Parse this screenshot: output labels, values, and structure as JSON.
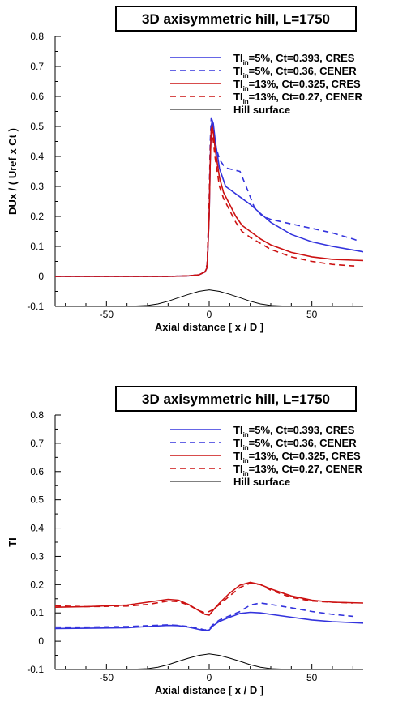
{
  "chart_data": [
    {
      "type": "line",
      "title": "3D axisymmetric hill, L=1750",
      "xlabel": "Axial distance [ x / D ]",
      "ylabel": "DUx / ( Uref x Ct )",
      "xlim": [
        -75,
        75
      ],
      "ylim": [
        -0.1,
        0.8
      ],
      "xticks": [
        -50,
        0,
        50
      ],
      "yticks": [
        -0.1,
        0,
        0.1,
        0.2,
        0.3,
        0.4,
        0.5,
        0.6,
        0.7,
        0.8
      ],
      "grid": false,
      "legend_position": "top-right",
      "series": [
        {
          "name": "TIin=5%, Ct=0.393, CRES",
          "legend_parts": [
            "TI",
            "in",
            "=5%, Ct=0.393, CRES"
          ],
          "color": "#3333dd",
          "dash": "solid",
          "x": [
            -75,
            -40,
            -20,
            -10,
            -5,
            -2,
            -1,
            0,
            0.5,
            1,
            1.5,
            2,
            3,
            5,
            8,
            12,
            16,
            20,
            25,
            30,
            40,
            50,
            60,
            70,
            75
          ],
          "y": [
            0,
            0,
            0,
            0.002,
            0.005,
            0.015,
            0.03,
            0.2,
            0.38,
            0.5,
            0.52,
            0.51,
            0.45,
            0.36,
            0.3,
            0.28,
            0.26,
            0.24,
            0.21,
            0.18,
            0.14,
            0.115,
            0.1,
            0.088,
            0.082
          ]
        },
        {
          "name": "TIin=5%, Ct=0.36, CENER",
          "legend_parts": [
            "TI",
            "in",
            "=5%, Ct=0.36, CENER"
          ],
          "color": "#3333dd",
          "dash": "dashed",
          "x": [
            -75,
            -40,
            -20,
            -10,
            -5,
            -2,
            -1,
            0,
            0.5,
            1,
            1.5,
            2,
            3,
            5,
            7,
            9,
            12,
            15,
            18,
            22,
            26,
            30,
            40,
            50,
            60,
            70,
            72
          ],
          "y": [
            0,
            0,
            0,
            0.002,
            0.005,
            0.015,
            0.04,
            0.25,
            0.45,
            0.53,
            0.52,
            0.5,
            0.44,
            0.39,
            0.37,
            0.36,
            0.355,
            0.35,
            0.3,
            0.23,
            0.2,
            0.19,
            0.175,
            0.16,
            0.145,
            0.125,
            0.12
          ]
        },
        {
          "name": "TIin=13%, Ct=0.325, CRES",
          "legend_parts": [
            "TI",
            "in",
            "=13%, Ct=0.325, CRES"
          ],
          "color": "#cc1111",
          "dash": "solid",
          "x": [
            -75,
            -40,
            -20,
            -10,
            -5,
            -2,
            -1,
            0,
            0.5,
            1,
            1.5,
            2,
            3,
            5,
            7,
            10,
            13,
            16,
            20,
            25,
            30,
            40,
            50,
            60,
            70,
            75
          ],
          "y": [
            0,
            0,
            0,
            0.002,
            0.005,
            0.015,
            0.03,
            0.2,
            0.38,
            0.49,
            0.5,
            0.48,
            0.42,
            0.33,
            0.28,
            0.24,
            0.2,
            0.17,
            0.15,
            0.125,
            0.105,
            0.08,
            0.065,
            0.057,
            0.054,
            0.053
          ]
        },
        {
          "name": "TIin=13%, Ct=0.27, CENER",
          "legend_parts": [
            "TI",
            "in",
            "=13%, Ct=0.27, CENER"
          ],
          "color": "#cc1111",
          "dash": "dashed",
          "x": [
            -75,
            -40,
            -20,
            -10,
            -5,
            -2,
            -1,
            0,
            0.5,
            1,
            1.5,
            2,
            3,
            5,
            7,
            10,
            13,
            16,
            20,
            25,
            30,
            40,
            50,
            60,
            70,
            72
          ],
          "y": [
            0,
            0,
            0,
            0.002,
            0.005,
            0.015,
            0.04,
            0.25,
            0.42,
            0.49,
            0.48,
            0.45,
            0.39,
            0.3,
            0.26,
            0.22,
            0.18,
            0.15,
            0.13,
            0.11,
            0.09,
            0.065,
            0.05,
            0.04,
            0.035,
            0.035
          ]
        },
        {
          "name": "Hill surface",
          "color": "#000000",
          "dash": "solid",
          "x": [
            -75,
            -50,
            -40,
            -30,
            -25,
            -20,
            -15,
            -10,
            -5,
            0,
            5,
            10,
            15,
            20,
            25,
            30,
            40,
            50,
            75
          ],
          "y": [
            -0.1,
            -0.1,
            -0.1,
            -0.097,
            -0.092,
            -0.083,
            -0.071,
            -0.06,
            -0.05,
            -0.045,
            -0.05,
            -0.06,
            -0.071,
            -0.083,
            -0.092,
            -0.097,
            -0.1,
            -0.1,
            -0.1
          ]
        }
      ]
    },
    {
      "type": "line",
      "title": "3D axisymmetric hill, L=1750",
      "xlabel": "Axial distance [ x / D ]",
      "ylabel": "TI",
      "xlim": [
        -75,
        75
      ],
      "ylim": [
        -0.1,
        0.8
      ],
      "xticks": [
        -50,
        0,
        50
      ],
      "yticks": [
        -0.1,
        0,
        0.1,
        0.2,
        0.3,
        0.4,
        0.5,
        0.6,
        0.7,
        0.8
      ],
      "grid": false,
      "legend_position": "top-right",
      "series": [
        {
          "name": "TIin=5%, Ct=0.393, CRES",
          "legend_parts": [
            "TI",
            "in",
            "=5%, Ct=0.393, CRES"
          ],
          "color": "#3333dd",
          "dash": "solid",
          "x": [
            -75,
            -60,
            -40,
            -30,
            -20,
            -15,
            -10,
            -5,
            -2,
            0,
            2,
            5,
            10,
            15,
            20,
            25,
            30,
            40,
            50,
            60,
            75
          ],
          "y": [
            0.045,
            0.046,
            0.048,
            0.052,
            0.056,
            0.055,
            0.05,
            0.042,
            0.038,
            0.04,
            0.055,
            0.07,
            0.085,
            0.098,
            0.102,
            0.1,
            0.095,
            0.085,
            0.075,
            0.069,
            0.064
          ]
        },
        {
          "name": "TIin=5%, Ct=0.36, CENER",
          "legend_parts": [
            "TI",
            "in",
            "=5%, Ct=0.36, CENER"
          ],
          "color": "#3333dd",
          "dash": "dashed",
          "x": [
            -75,
            -60,
            -40,
            -30,
            -20,
            -15,
            -10,
            -5,
            -2,
            0,
            2,
            5,
            10,
            15,
            20,
            25,
            30,
            40,
            50,
            60,
            70
          ],
          "y": [
            0.05,
            0.05,
            0.052,
            0.055,
            0.058,
            0.056,
            0.052,
            0.045,
            0.04,
            0.045,
            0.06,
            0.075,
            0.09,
            0.105,
            0.128,
            0.135,
            0.13,
            0.118,
            0.105,
            0.095,
            0.088
          ]
        },
        {
          "name": "TIin=13%, Ct=0.325, CRES",
          "legend_parts": [
            "TI",
            "in",
            "=13%, Ct=0.325, CRES"
          ],
          "color": "#cc1111",
          "dash": "solid",
          "x": [
            -75,
            -60,
            -40,
            -30,
            -20,
            -15,
            -10,
            -5,
            -2,
            0,
            2,
            5,
            10,
            15,
            20,
            25,
            30,
            40,
            50,
            60,
            75
          ],
          "y": [
            0.12,
            0.122,
            0.128,
            0.138,
            0.148,
            0.145,
            0.13,
            0.108,
            0.095,
            0.092,
            0.11,
            0.135,
            0.17,
            0.198,
            0.208,
            0.2,
            0.185,
            0.16,
            0.145,
            0.138,
            0.135
          ]
        },
        {
          "name": "TIin=13%, Ct=0.27, CENER",
          "legend_parts": [
            "TI",
            "in",
            "=13%, Ct=0.27, CENER"
          ],
          "color": "#cc1111",
          "dash": "dashed",
          "x": [
            -75,
            -60,
            -40,
            -30,
            -20,
            -15,
            -10,
            -5,
            -2,
            0,
            2,
            5,
            10,
            15,
            20,
            25,
            30,
            40,
            50,
            60,
            70
          ],
          "y": [
            0.125,
            0.122,
            0.124,
            0.13,
            0.142,
            0.14,
            0.128,
            0.108,
            0.1,
            0.105,
            0.112,
            0.13,
            0.16,
            0.19,
            0.205,
            0.2,
            0.18,
            0.155,
            0.142,
            0.138,
            0.135
          ]
        },
        {
          "name": "Hill surface",
          "color": "#000000",
          "dash": "solid",
          "x": [
            -75,
            -50,
            -40,
            -30,
            -25,
            -20,
            -15,
            -10,
            -5,
            0,
            5,
            10,
            15,
            20,
            25,
            30,
            40,
            50,
            75
          ],
          "y": [
            -0.1,
            -0.1,
            -0.1,
            -0.097,
            -0.092,
            -0.083,
            -0.071,
            -0.06,
            -0.05,
            -0.045,
            -0.05,
            -0.06,
            -0.071,
            -0.083,
            -0.092,
            -0.097,
            -0.1,
            -0.1,
            -0.1
          ]
        }
      ]
    }
  ]
}
